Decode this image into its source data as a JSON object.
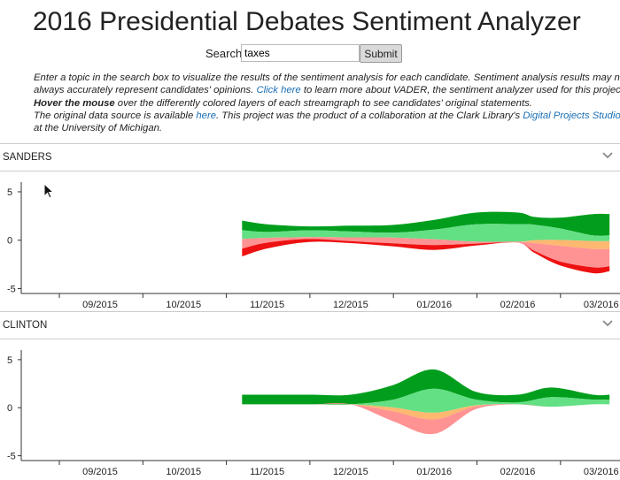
{
  "page": {
    "title": "2016 Presidential Debates Sentiment Analyzer"
  },
  "search": {
    "label": "Search:",
    "value": "taxes",
    "submit_label": "Submit"
  },
  "description": {
    "line1": "Enter a topic in the search box to visualize the results of the sentiment analysis for each candidate. Sentiment analysis results may not",
    "line2_before_link": "always accurately represent candidates' opinions. ",
    "line2_link": "Click here",
    "line2_after_link": " to learn more about VADER, the sentiment analyzer used for this project.",
    "line3_bold": "Hover the mouse",
    "line3_rest": " over the differently colored layers of each streamgraph to see candidates' original statements.",
    "line4_before_link": "The original data source is available ",
    "line4_link": "here",
    "line4_mid": ". This project was the product of a collaboration at the Clark Library's ",
    "line4_link2": "Digital Projects Studio",
    "line5": "at the University of Michigan."
  },
  "colors": {
    "positive_dark": "#009e1c",
    "positive_light": "#63df84",
    "neutral": "#ffb870",
    "negative_light": "#ff9393",
    "negative_dark": "#ee1111",
    "link": "#1a6fb5"
  },
  "sections": [
    {
      "name": "SANDERS",
      "icon": "chevron-down-icon"
    },
    {
      "name": "CLINTON",
      "icon": "chevron-down-icon"
    }
  ],
  "chart_data": [
    {
      "type": "area",
      "chart_kind": "streamgraph",
      "candidate": "SANDERS",
      "x": [
        "09/2015",
        "10/2015",
        "11/2015",
        "12/2015",
        "01/2016",
        "02/2016",
        "03/2016"
      ],
      "y_ticks": [
        "5",
        "0",
        "-5"
      ],
      "ylim": [
        -5.5,
        6
      ],
      "x_samples": [
        10.7,
        11.0,
        11.5,
        12.0,
        12.5,
        13.0,
        13.5,
        14.0,
        14.2,
        14.5,
        14.9,
        15.1
      ],
      "layers": [
        {
          "name": "positive_dark",
          "color": "#009e1c",
          "values": [
            1.0,
            0.8,
            0.4,
            0.6,
            0.8,
            1.0,
            1.2,
            1.2,
            0.8,
            1.1,
            2.2,
            2.2
          ]
        },
        {
          "name": "positive_light",
          "color": "#63df84",
          "values": [
            0.9,
            0.6,
            0.7,
            0.6,
            0.5,
            1.0,
            1.8,
            1.8,
            1.6,
            1.2,
            0.6,
            0.6
          ]
        },
        {
          "name": "neutral",
          "color": "#ffb870",
          "values": [
            0.0,
            0.0,
            0.0,
            0.0,
            0.0,
            0.0,
            0.0,
            0.0,
            0.3,
            0.6,
            0.8,
            0.8
          ]
        },
        {
          "name": "negative_light",
          "color": "#ff9393",
          "values": [
            1.0,
            0.5,
            0.2,
            0.4,
            0.6,
            0.6,
            0.2,
            0.1,
            0.8,
            1.6,
            1.9,
            1.8
          ]
        },
        {
          "name": "negative_dark",
          "color": "#ee1111",
          "values": [
            0.8,
            0.6,
            0.3,
            0.2,
            0.3,
            0.5,
            0.2,
            0.0,
            0.2,
            0.4,
            0.6,
            0.5
          ]
        }
      ]
    },
    {
      "type": "area",
      "chart_kind": "streamgraph",
      "candidate": "CLINTON",
      "x": [
        "09/2015",
        "10/2015",
        "11/2015",
        "12/2015",
        "01/2016",
        "02/2016",
        "03/2016"
      ],
      "y_ticks": [
        "5",
        "0",
        "-5"
      ],
      "ylim": [
        -5.5,
        6
      ],
      "x_samples": [
        10.7,
        11.5,
        12.0,
        12.5,
        13.0,
        13.5,
        14.0,
        14.4,
        14.9,
        15.1
      ],
      "layers": [
        {
          "name": "positive_dark",
          "color": "#009e1c",
          "values": [
            1.0,
            1.0,
            1.0,
            1.5,
            2.0,
            0.8,
            0.8,
            1.0,
            0.5,
            0.5
          ]
        },
        {
          "name": "positive_light",
          "color": "#63df84",
          "values": [
            0.0,
            0.0,
            0.0,
            0.8,
            2.5,
            0.6,
            0.2,
            1.0,
            0.5,
            0.5
          ]
        },
        {
          "name": "neutral",
          "color": "#ffb870",
          "values": [
            0.0,
            0.0,
            0.0,
            0.4,
            0.7,
            0.1,
            0.0,
            0.0,
            0.0,
            0.0
          ]
        },
        {
          "name": "negative_light",
          "color": "#ff9393",
          "values": [
            0.0,
            0.0,
            0.0,
            1.0,
            1.5,
            0.3,
            0.0,
            0.0,
            0.0,
            0.0
          ]
        },
        {
          "name": "negative_dark",
          "color": "#ee1111",
          "values": [
            0.0,
            0.0,
            0.0,
            0.0,
            0.0,
            0.0,
            0.0,
            0.0,
            0.0,
            0.0
          ]
        }
      ]
    }
  ]
}
